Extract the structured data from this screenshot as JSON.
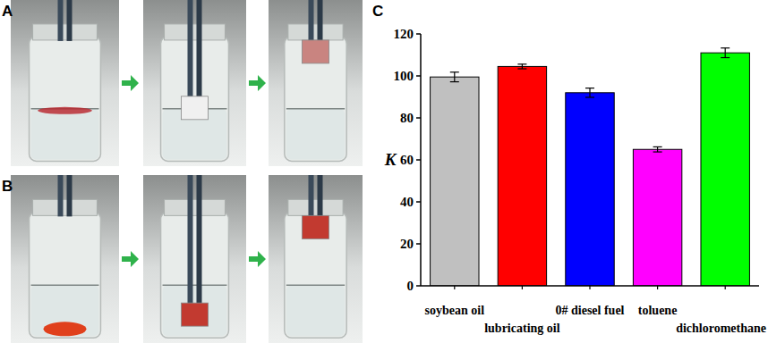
{
  "panel_labels": [
    "A",
    "B",
    "C"
  ],
  "chart_data": {
    "type": "bar",
    "y_label": "K",
    "categories": [
      "soybean oil",
      "lubricating oil",
      "0# diesel fuel",
      "toluene",
      "dichloromethane"
    ],
    "values": [
      99.5,
      104.5,
      92,
      65,
      111
    ],
    "errors": [
      2.3,
      1.1,
      2.2,
      1.2,
      2.3
    ],
    "colors": [
      "#c0c0c0",
      "#ff0000",
      "#0000ff",
      "#ff00ff",
      "#00ff00"
    ],
    "ylim": [
      0,
      120
    ],
    "yticks": [
      0,
      20,
      40,
      60,
      80,
      100,
      120
    ],
    "grid": false,
    "data_labels": false
  }
}
